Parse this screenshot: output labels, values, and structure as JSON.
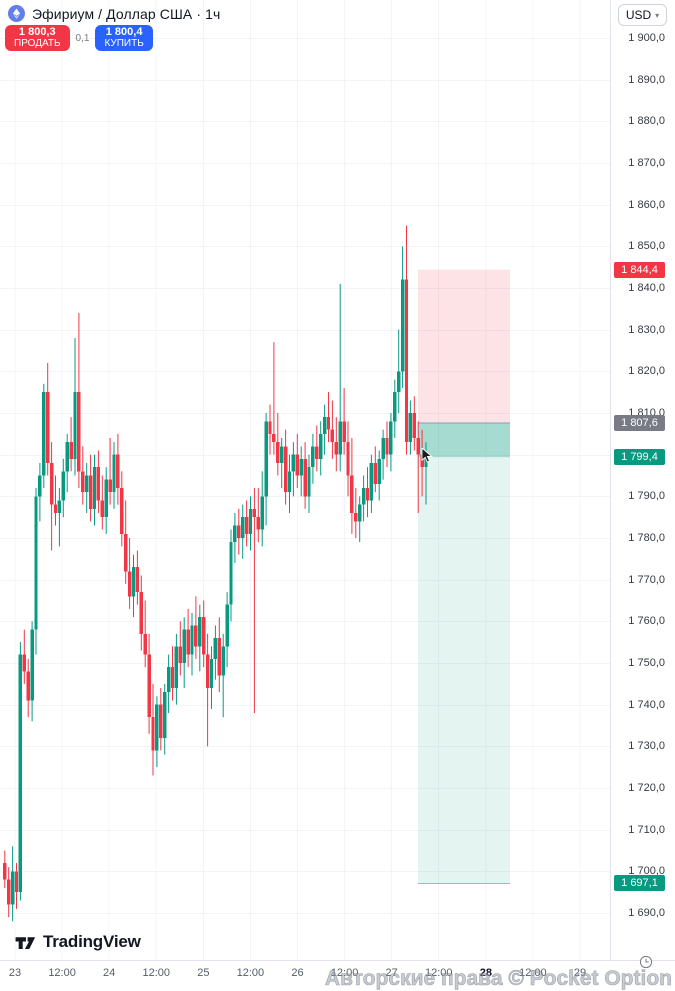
{
  "header": {
    "symbol_title": "Эфириум / Доллар США · 1ч",
    "symbol_icon": "ethereum-icon",
    "sell": {
      "price": "1 800,3",
      "label": "ПРОДАТЬ"
    },
    "buy": {
      "price": "1 800,4",
      "label": "КУПИТЬ"
    },
    "spread": "0,1"
  },
  "top_right": {
    "currency": "USD",
    "caret": "▾"
  },
  "watermark": "Авторские права © Pocket Option",
  "footer": {
    "logo_text": "TradingView"
  },
  "price_scale": {
    "max_price": 1900,
    "min_price": 1690,
    "step": 10,
    "ticks": [
      "1 900,0",
      "1 890,0",
      "1 880,0",
      "1 870,0",
      "1 860,0",
      "1 850,0",
      "1 840,0",
      "1 830,0",
      "1 820,0",
      "1 810,0",
      "1 800,0",
      "1 790,0",
      "1 780,0",
      "1 770,0",
      "1 760,0",
      "1 750,0",
      "1 740,0",
      "1 730,0",
      "1 720,0",
      "1 710,0",
      "1 700,0",
      "1 690,0"
    ]
  },
  "time_scale": {
    "ticks": [
      {
        "label": "23",
        "bold": false
      },
      {
        "label": "12:00",
        "bold": false
      },
      {
        "label": "24",
        "bold": false
      },
      {
        "label": "12:00",
        "bold": false
      },
      {
        "label": "25",
        "bold": false
      },
      {
        "label": "12:00",
        "bold": false
      },
      {
        "label": "26",
        "bold": false
      },
      {
        "label": "12:00",
        "bold": false
      },
      {
        "label": "27",
        "bold": false
      },
      {
        "label": "12:00",
        "bold": false
      },
      {
        "label": "28",
        "bold": true
      },
      {
        "label": "12:00",
        "bold": false
      },
      {
        "label": "29",
        "bold": false
      }
    ]
  },
  "badges": [
    {
      "name": "stop-price-badge",
      "label": "1 844,4",
      "price": 1844.4,
      "color": "#f23645"
    },
    {
      "name": "entry-price-badge",
      "label": "1 807,6",
      "price": 1807.6,
      "color": "#787b86"
    },
    {
      "name": "current-price-badge",
      "label": "1 799,4",
      "price": 1799.4,
      "color": "#089981"
    },
    {
      "name": "target-price-badge",
      "label": "1 697,1",
      "price": 1697.1,
      "color": "#089981"
    }
  ],
  "position_tool": {
    "type": "short-position",
    "stop_price": 1844.4,
    "entry_price": 1807.6,
    "current_price": 1799.4,
    "target_price": 1697.1,
    "loss_zone_color": "rgba(242,54,69,0.14)",
    "profit_zone_color": "rgba(8,153,129,0.11)",
    "open_pl_band_color": "rgba(8,153,129,0.28)",
    "entry_line_color": "#9598a1"
  },
  "chart_data": {
    "type": "candlestick",
    "title": "Эфириум / Доллар США",
    "timeframe": "1ч",
    "up_color": "#089981",
    "down_color": "#f23645",
    "grid_color": "#f2f4f9",
    "ylim": [
      1690,
      1900
    ],
    "x_days_visible": [
      "23",
      "24",
      "25",
      "26",
      "27",
      "28",
      "29"
    ],
    "candles": [
      [
        1702,
        1705,
        1696,
        1698
      ],
      [
        1698,
        1701,
        1689,
        1692
      ],
      [
        1692,
        1706,
        1688,
        1700
      ],
      [
        1700,
        1702,
        1691,
        1695
      ],
      [
        1695,
        1755,
        1693,
        1752
      ],
      [
        1752,
        1758,
        1745,
        1748
      ],
      [
        1748,
        1751,
        1737,
        1741
      ],
      [
        1741,
        1760,
        1736,
        1758
      ],
      [
        1758,
        1792,
        1752,
        1790
      ],
      [
        1790,
        1798,
        1784,
        1795
      ],
      [
        1795,
        1817,
        1792,
        1815
      ],
      [
        1815,
        1822,
        1795,
        1798
      ],
      [
        1798,
        1803,
        1777,
        1788
      ],
      [
        1788,
        1795,
        1783,
        1786
      ],
      [
        1786,
        1792,
        1778,
        1789
      ],
      [
        1789,
        1799,
        1785,
        1796
      ],
      [
        1796,
        1805,
        1791,
        1803
      ],
      [
        1803,
        1809,
        1796,
        1799
      ],
      [
        1799,
        1828,
        1795,
        1815
      ],
      [
        1815,
        1834,
        1792,
        1796
      ],
      [
        1796,
        1802,
        1788,
        1791
      ],
      [
        1791,
        1798,
        1786,
        1795
      ],
      [
        1795,
        1800,
        1784,
        1787
      ],
      [
        1787,
        1800,
        1783,
        1797
      ],
      [
        1797,
        1801,
        1786,
        1789
      ],
      [
        1789,
        1795,
        1782,
        1785
      ],
      [
        1785,
        1797,
        1781,
        1794
      ],
      [
        1794,
        1804,
        1788,
        1791
      ],
      [
        1791,
        1803,
        1787,
        1800
      ],
      [
        1800,
        1805,
        1788,
        1792
      ],
      [
        1792,
        1796,
        1778,
        1781
      ],
      [
        1781,
        1789,
        1769,
        1772
      ],
      [
        1772,
        1780,
        1763,
        1766
      ],
      [
        1766,
        1776,
        1761,
        1773
      ],
      [
        1773,
        1777,
        1764,
        1767
      ],
      [
        1767,
        1771,
        1753,
        1757
      ],
      [
        1757,
        1765,
        1749,
        1752
      ],
      [
        1752,
        1757,
        1733,
        1737
      ],
      [
        1737,
        1745,
        1723,
        1729
      ],
      [
        1729,
        1742,
        1725,
        1740
      ],
      [
        1740,
        1744,
        1729,
        1732
      ],
      [
        1732,
        1745,
        1728,
        1743
      ],
      [
        1743,
        1752,
        1738,
        1749
      ],
      [
        1749,
        1754,
        1741,
        1744
      ],
      [
        1744,
        1757,
        1740,
        1754
      ],
      [
        1754,
        1760,
        1747,
        1750
      ],
      [
        1750,
        1761,
        1744,
        1758
      ],
      [
        1758,
        1763,
        1749,
        1752
      ],
      [
        1752,
        1762,
        1747,
        1759
      ],
      [
        1759,
        1766,
        1751,
        1754
      ],
      [
        1754,
        1764,
        1748,
        1761
      ],
      [
        1761,
        1765,
        1749,
        1752
      ],
      [
        1752,
        1757,
        1730,
        1744
      ],
      [
        1744,
        1754,
        1739,
        1751
      ],
      [
        1751,
        1759,
        1746,
        1756
      ],
      [
        1756,
        1761,
        1743,
        1747
      ],
      [
        1747,
        1757,
        1737,
        1754
      ],
      [
        1754,
        1767,
        1749,
        1764
      ],
      [
        1764,
        1782,
        1760,
        1779
      ],
      [
        1779,
        1786,
        1774,
        1783
      ],
      [
        1783,
        1787,
        1776,
        1780
      ],
      [
        1780,
        1788,
        1775,
        1785
      ],
      [
        1785,
        1789,
        1778,
        1781
      ],
      [
        1781,
        1790,
        1777,
        1787
      ],
      [
        1787,
        1792,
        1738,
        1785
      ],
      [
        1785,
        1792,
        1779,
        1782
      ],
      [
        1782,
        1796,
        1778,
        1790
      ],
      [
        1790,
        1810,
        1783,
        1808
      ],
      [
        1808,
        1812,
        1800,
        1805
      ],
      [
        1805,
        1827,
        1800,
        1803
      ],
      [
        1803,
        1810,
        1795,
        1798
      ],
      [
        1798,
        1804,
        1792,
        1802
      ],
      [
        1802,
        1806,
        1788,
        1791
      ],
      [
        1791,
        1800,
        1786,
        1796
      ],
      [
        1796,
        1803,
        1790,
        1800
      ],
      [
        1800,
        1805,
        1792,
        1795
      ],
      [
        1795,
        1802,
        1790,
        1799
      ],
      [
        1799,
        1803,
        1787,
        1790
      ],
      [
        1790,
        1800,
        1786,
        1797
      ],
      [
        1797,
        1805,
        1793,
        1802
      ],
      [
        1802,
        1807,
        1796,
        1799
      ],
      [
        1799,
        1808,
        1795,
        1805
      ],
      [
        1805,
        1812,
        1800,
        1809
      ],
      [
        1809,
        1815,
        1803,
        1806
      ],
      [
        1806,
        1813,
        1799,
        1803
      ],
      [
        1803,
        1809,
        1796,
        1800
      ],
      [
        1800,
        1841,
        1796,
        1808
      ],
      [
        1808,
        1816,
        1800,
        1803
      ],
      [
        1803,
        1808,
        1790,
        1795
      ],
      [
        1795,
        1804,
        1781,
        1786
      ],
      [
        1786,
        1792,
        1780,
        1784
      ],
      [
        1784,
        1790,
        1779,
        1788
      ],
      [
        1788,
        1795,
        1784,
        1792
      ],
      [
        1792,
        1797,
        1785,
        1789
      ],
      [
        1789,
        1800,
        1786,
        1798
      ],
      [
        1798,
        1802,
        1791,
        1793
      ],
      [
        1793,
        1801,
        1789,
        1799
      ],
      [
        1799,
        1806,
        1794,
        1804
      ],
      [
        1804,
        1808,
        1797,
        1800
      ],
      [
        1800,
        1810,
        1796,
        1808
      ],
      [
        1808,
        1818,
        1804,
        1815
      ],
      [
        1815,
        1830,
        1810,
        1820
      ],
      [
        1820,
        1850,
        1816,
        1842
      ],
      [
        1842,
        1855,
        1800,
        1803
      ],
      [
        1803,
        1813,
        1800,
        1810
      ],
      [
        1810,
        1814,
        1801,
        1804
      ],
      [
        1804,
        1808,
        1786,
        1800
      ],
      [
        1800,
        1806,
        1790,
        1797
      ],
      [
        1797,
        1803,
        1788,
        1799.4
      ]
    ]
  }
}
